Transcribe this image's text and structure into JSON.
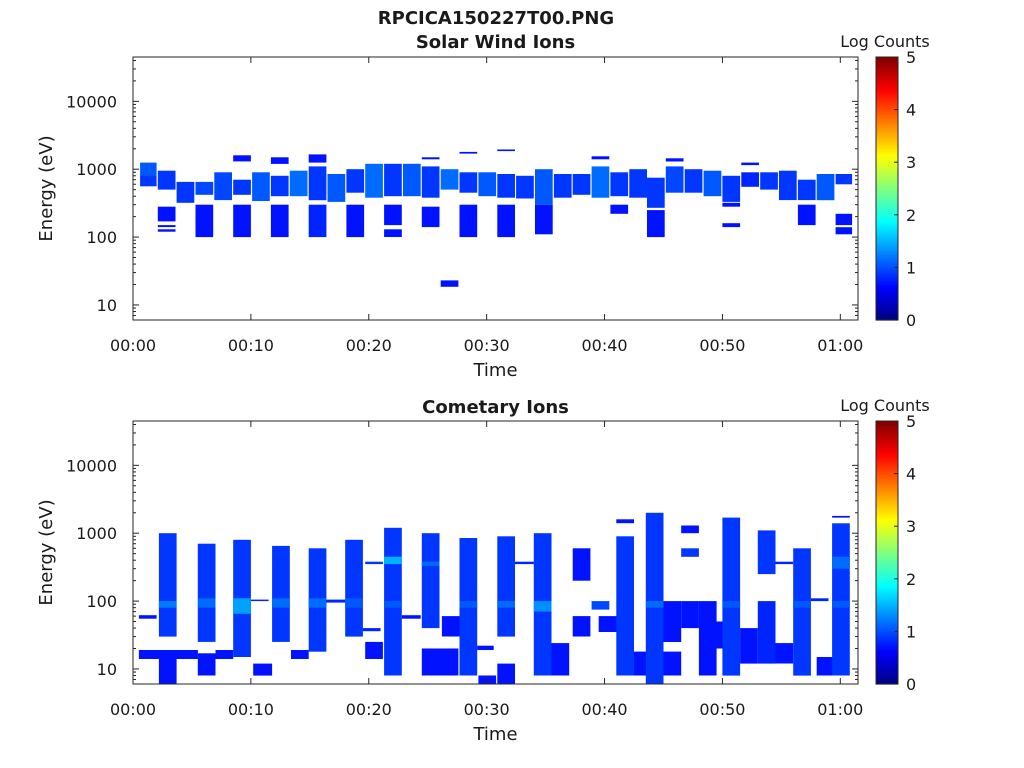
{
  "figure_title": "RPCICA150227T00.PNG",
  "chart_data": [
    {
      "type": "heatmap",
      "title": "Solar Wind Ions",
      "xlabel": "Time",
      "ylabel": "Energy (eV)",
      "x_range_min": [
        0,
        61.5
      ],
      "y_scale": "log",
      "y_range": [
        6,
        45000
      ],
      "x_ticks": [
        {
          "v": 0,
          "label": "00:00"
        },
        {
          "v": 10,
          "label": "00:10"
        },
        {
          "v": 20,
          "label": "00:20"
        },
        {
          "v": 30,
          "label": "00:30"
        },
        {
          "v": 40,
          "label": "00:40"
        },
        {
          "v": 50,
          "label": "00:50"
        },
        {
          "v": 60,
          "label": "01:00"
        }
      ],
      "y_ticks": [
        {
          "v": 10,
          "label": "10"
        },
        {
          "v": 100,
          "label": "100"
        },
        {
          "v": 1000,
          "label": "1000"
        },
        {
          "v": 10000,
          "label": "10000"
        }
      ],
      "colorbar": {
        "label": "Log Counts",
        "min": 0,
        "max": 5,
        "ticks": [
          "0",
          "1",
          "2",
          "3",
          "4",
          "5"
        ]
      },
      "grid": false,
      "cells": [
        [
          0.6,
          2.0,
          820,
          1250,
          0.5
        ],
        [
          0.6,
          2.0,
          560,
          820,
          0.3
        ],
        [
          2.1,
          3.6,
          500,
          950,
          0.3
        ],
        [
          2.1,
          3.6,
          170,
          280,
          0.1
        ],
        [
          2.1,
          3.6,
          140,
          150,
          0.1
        ],
        [
          2.1,
          3.6,
          120,
          130,
          0.1
        ],
        [
          3.7,
          5.2,
          320,
          650,
          0.3
        ],
        [
          5.3,
          6.8,
          420,
          650,
          0.4
        ],
        [
          5.3,
          6.8,
          100,
          300,
          0.1
        ],
        [
          6.9,
          8.4,
          350,
          900,
          0.4
        ],
        [
          8.5,
          10.0,
          420,
          700,
          0.3
        ],
        [
          8.5,
          10.0,
          100,
          300,
          0.1
        ],
        [
          8.5,
          10.0,
          1300,
          1600,
          0.1
        ],
        [
          10.1,
          11.6,
          340,
          900,
          0.5
        ],
        [
          11.7,
          13.2,
          400,
          800,
          0.3
        ],
        [
          11.7,
          13.2,
          100,
          300,
          0.1
        ],
        [
          11.7,
          13.2,
          1200,
          1500,
          0.1
        ],
        [
          13.3,
          14.8,
          400,
          950,
          0.6
        ],
        [
          14.9,
          16.4,
          350,
          1100,
          0.3
        ],
        [
          14.9,
          16.4,
          100,
          300,
          0.2
        ],
        [
          14.9,
          16.4,
          1250,
          1650,
          0.1
        ],
        [
          16.5,
          18.0,
          330,
          850,
          0.5
        ],
        [
          18.1,
          19.6,
          450,
          1000,
          0.3
        ],
        [
          18.1,
          19.6,
          100,
          300,
          0.1
        ],
        [
          19.7,
          21.2,
          380,
          1200,
          0.6
        ],
        [
          21.3,
          22.8,
          400,
          1200,
          0.3
        ],
        [
          21.3,
          22.8,
          150,
          300,
          0.1
        ],
        [
          21.3,
          22.8,
          100,
          130,
          0.1
        ],
        [
          22.9,
          24.4,
          400,
          1200,
          0.5
        ],
        [
          24.5,
          26.0,
          380,
          1100,
          0.3
        ],
        [
          24.5,
          26.0,
          140,
          280,
          0.1
        ],
        [
          24.5,
          26.0,
          1400,
          1500,
          0.1
        ],
        [
          26.1,
          27.6,
          500,
          1000,
          0.6
        ],
        [
          26.1,
          27.6,
          18.5,
          23,
          0.1
        ],
        [
          27.7,
          29.2,
          450,
          900,
          0.3
        ],
        [
          27.7,
          29.2,
          100,
          300,
          0.1
        ],
        [
          27.7,
          29.2,
          1700,
          1800,
          0.1
        ],
        [
          29.3,
          30.8,
          400,
          900,
          0.5
        ],
        [
          30.9,
          32.4,
          380,
          850,
          0.3
        ],
        [
          30.9,
          32.4,
          100,
          300,
          0.1
        ],
        [
          30.9,
          32.4,
          1850,
          1950,
          0.1
        ],
        [
          32.5,
          34.0,
          370,
          800,
          0.3
        ],
        [
          34.1,
          35.6,
          300,
          1000,
          0.5
        ],
        [
          34.1,
          35.6,
          110,
          300,
          0.1
        ],
        [
          35.7,
          37.2,
          380,
          850,
          0.3
        ],
        [
          37.3,
          38.8,
          420,
          850,
          0.3
        ],
        [
          38.9,
          40.4,
          380,
          1100,
          0.6
        ],
        [
          38.9,
          40.4,
          1400,
          1550,
          0.1
        ],
        [
          40.5,
          42.0,
          400,
          900,
          0.3
        ],
        [
          40.5,
          42.0,
          220,
          300,
          0.1
        ],
        [
          42.1,
          43.6,
          380,
          1000,
          0.3
        ],
        [
          43.6,
          45.1,
          270,
          750,
          0.3
        ],
        [
          43.6,
          45.1,
          100,
          250,
          0.1
        ],
        [
          45.2,
          46.7,
          450,
          1100,
          0.4
        ],
        [
          45.2,
          46.7,
          1300,
          1450,
          0.1
        ],
        [
          46.8,
          48.3,
          450,
          1000,
          0.3
        ],
        [
          48.4,
          49.9,
          400,
          950,
          0.5
        ],
        [
          50.0,
          51.5,
          330,
          800,
          0.3
        ],
        [
          50.0,
          51.5,
          140,
          160,
          0.1
        ],
        [
          50.0,
          51.5,
          280,
          320,
          0.1
        ],
        [
          51.6,
          53.1,
          550,
          900,
          0.2
        ],
        [
          51.6,
          53.1,
          1150,
          1250,
          0.1
        ],
        [
          53.2,
          54.7,
          500,
          900,
          0.3
        ],
        [
          54.8,
          56.3,
          350,
          950,
          0.3
        ],
        [
          56.4,
          57.9,
          350,
          700,
          0.3
        ],
        [
          56.4,
          57.9,
          150,
          300,
          0.1
        ],
        [
          58.0,
          59.5,
          350,
          850,
          0.5
        ],
        [
          59.6,
          61.0,
          600,
          850,
          0.3
        ],
        [
          59.6,
          61.0,
          150,
          220,
          0.1
        ],
        [
          59.6,
          61.0,
          110,
          140,
          0.1
        ]
      ]
    },
    {
      "type": "heatmap",
      "title": "Cometary Ions",
      "xlabel": "Time",
      "ylabel": "Energy (eV)",
      "x_range_min": [
        0,
        61.5
      ],
      "y_scale": "log",
      "y_range": [
        6,
        45000
      ],
      "x_ticks": [
        {
          "v": 0,
          "label": "00:00"
        },
        {
          "v": 10,
          "label": "00:10"
        },
        {
          "v": 20,
          "label": "00:20"
        },
        {
          "v": 30,
          "label": "00:30"
        },
        {
          "v": 40,
          "label": "00:40"
        },
        {
          "v": 50,
          "label": "00:50"
        },
        {
          "v": 60,
          "label": "01:00"
        }
      ],
      "y_ticks": [
        {
          "v": 10,
          "label": "10"
        },
        {
          "v": 100,
          "label": "100"
        },
        {
          "v": 1000,
          "label": "1000"
        },
        {
          "v": 10000,
          "label": "10000"
        }
      ],
      "colorbar": {
        "label": "Log Counts",
        "min": 0,
        "max": 5,
        "ticks": [
          "0",
          "1",
          "2",
          "3",
          "4",
          "5"
        ]
      },
      "grid": false,
      "cells": [
        [
          0.5,
          2.0,
          55,
          62,
          0.1
        ],
        [
          0.5,
          2.5,
          14,
          19,
          0.1
        ],
        [
          2.2,
          3.7,
          30,
          1000,
          0.3
        ],
        [
          2.2,
          3.7,
          6,
          18,
          0.1
        ],
        [
          2.2,
          3.7,
          80,
          100,
          0.7
        ],
        [
          2.5,
          5.5,
          14,
          19,
          0.1
        ],
        [
          5.5,
          7.0,
          25,
          700,
          0.3
        ],
        [
          5.5,
          7.0,
          8,
          17,
          0.1
        ],
        [
          5.5,
          7.0,
          80,
          110,
          0.6
        ],
        [
          7.0,
          8.5,
          14,
          19,
          0.1
        ],
        [
          8.5,
          10.0,
          15,
          800,
          0.3
        ],
        [
          8.5,
          10.0,
          65,
          110,
          0.9
        ],
        [
          10.0,
          11.5,
          100,
          105,
          0.2
        ],
        [
          10.2,
          11.8,
          8,
          12,
          0.1
        ],
        [
          11.8,
          13.3,
          25,
          650,
          0.3
        ],
        [
          11.8,
          13.3,
          80,
          110,
          0.6
        ],
        [
          13.4,
          14.9,
          14,
          19,
          0.1
        ],
        [
          14.9,
          16.4,
          18,
          600,
          0.3
        ],
        [
          14.9,
          16.4,
          80,
          110,
          0.6
        ],
        [
          16.4,
          18.0,
          95,
          105,
          0.2
        ],
        [
          18.0,
          19.5,
          30,
          800,
          0.3
        ],
        [
          18.0,
          19.5,
          80,
          110,
          0.5
        ],
        [
          19.5,
          21.0,
          36,
          40,
          0.2
        ],
        [
          19.7,
          21.2,
          350,
          380,
          0.3
        ],
        [
          19.7,
          21.2,
          14,
          25,
          0.1
        ],
        [
          21.3,
          22.8,
          8,
          1200,
          0.3
        ],
        [
          21.3,
          22.8,
          350,
          450,
          1.0
        ],
        [
          21.3,
          22.8,
          80,
          100,
          0.5
        ],
        [
          22.8,
          24.4,
          55,
          62,
          0.1
        ],
        [
          24.5,
          26.0,
          40,
          1000,
          0.3
        ],
        [
          24.5,
          26.0,
          8,
          20,
          0.1
        ],
        [
          24.5,
          26.0,
          330,
          380,
          0.6
        ],
        [
          26.0,
          27.6,
          8,
          20,
          0.1
        ],
        [
          26.2,
          27.7,
          30,
          60,
          0.1
        ],
        [
          27.7,
          29.2,
          8,
          850,
          0.3
        ],
        [
          27.7,
          29.2,
          80,
          100,
          0.5
        ],
        [
          29.2,
          30.6,
          19,
          22,
          0.1
        ],
        [
          29.3,
          30.8,
          6,
          8,
          0.1
        ],
        [
          30.9,
          32.4,
          30,
          900,
          0.3
        ],
        [
          30.9,
          32.4,
          80,
          100,
          0.6
        ],
        [
          30.9,
          32.4,
          6,
          12,
          0.1
        ],
        [
          32.4,
          34.0,
          350,
          380,
          0.2
        ],
        [
          34.0,
          35.5,
          8,
          1000,
          0.3
        ],
        [
          34.0,
          35.5,
          70,
          100,
          0.8
        ],
        [
          35.5,
          37.0,
          8,
          24,
          0.1
        ],
        [
          37.3,
          38.8,
          200,
          600,
          0.1
        ],
        [
          37.3,
          38.8,
          30,
          60,
          0.1
        ],
        [
          38.9,
          40.4,
          75,
          100,
          0.4
        ],
        [
          39.5,
          41.5,
          35,
          60,
          0.1
        ],
        [
          41.0,
          42.5,
          8,
          900,
          0.3
        ],
        [
          41.0,
          42.5,
          1400,
          1600,
          0.1
        ],
        [
          42.5,
          44.0,
          8,
          18,
          0.1
        ],
        [
          43.5,
          45.0,
          6,
          2000,
          0.3
        ],
        [
          43.5,
          45.0,
          80,
          100,
          0.6
        ],
        [
          45.0,
          46.5,
          25,
          100,
          0.1
        ],
        [
          45.0,
          46.5,
          8,
          18,
          0.1
        ],
        [
          46.5,
          48.0,
          40,
          100,
          0.1
        ],
        [
          46.5,
          48.0,
          450,
          600,
          0.3
        ],
        [
          46.5,
          48.0,
          1000,
          1300,
          0.1
        ],
        [
          48.0,
          49.5,
          8,
          100,
          0.1
        ],
        [
          49.5,
          51.0,
          20,
          50,
          0.1
        ],
        [
          50.0,
          51.5,
          8,
          1700,
          0.3
        ],
        [
          50.0,
          51.5,
          80,
          100,
          0.5
        ],
        [
          51.5,
          53.0,
          12,
          40,
          0.1
        ],
        [
          53.0,
          54.5,
          250,
          1100,
          0.3
        ],
        [
          53.0,
          54.5,
          12,
          100,
          0.2
        ],
        [
          54.5,
          56.0,
          350,
          380,
          0.2
        ],
        [
          54.5,
          56.0,
          12,
          24,
          0.1
        ],
        [
          56.0,
          57.5,
          8,
          600,
          0.3
        ],
        [
          56.0,
          57.5,
          80,
          100,
          0.5
        ],
        [
          57.5,
          59.0,
          100,
          110,
          0.2
        ],
        [
          58.0,
          59.5,
          8,
          15,
          0.1
        ],
        [
          59.3,
          60.8,
          8,
          1400,
          0.3
        ],
        [
          59.3,
          60.8,
          300,
          450,
          0.6
        ],
        [
          59.3,
          60.8,
          80,
          100,
          0.5
        ],
        [
          59.3,
          60.8,
          1700,
          1800,
          0.1
        ]
      ]
    }
  ]
}
